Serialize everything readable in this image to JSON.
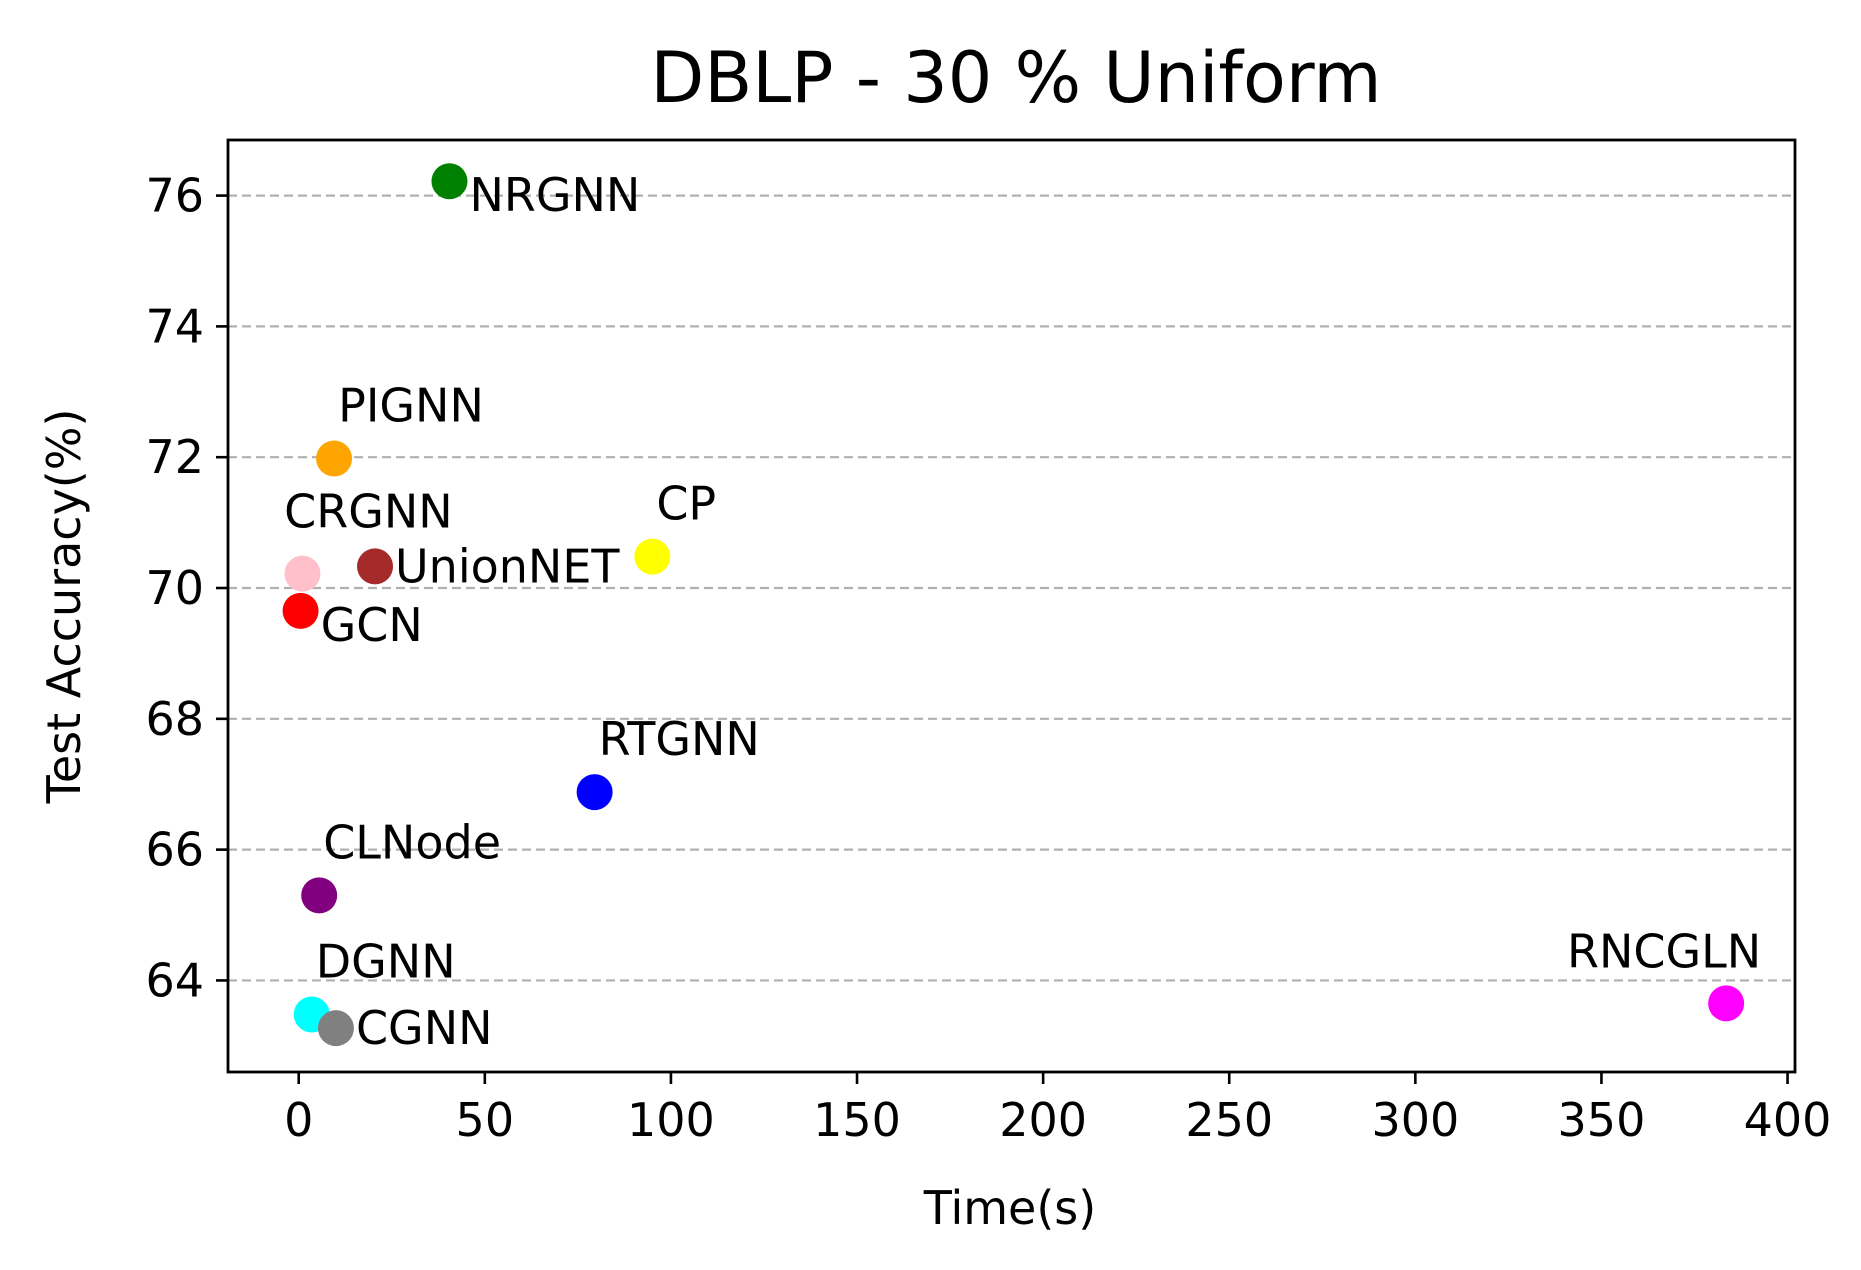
{
  "chart_data": {
    "type": "scatter",
    "title": "DBLP - 30 % Uniform",
    "xlabel": "Time(s)",
    "ylabel": "Test Accuracy(%)",
    "xlim": [
      -19,
      402
    ],
    "ylim": [
      62.6,
      76.85
    ],
    "xticks": [
      0,
      50,
      100,
      150,
      200,
      250,
      300,
      350,
      400
    ],
    "yticks": [
      64,
      66,
      68,
      70,
      72,
      74,
      76
    ],
    "grid": "y-dashed",
    "points": [
      {
        "label": "NRGNN",
        "x": 40.5,
        "y": 76.22,
        "color": "#008000",
        "label_pos": "below-right"
      },
      {
        "label": "PIGNN",
        "x": 9.5,
        "y": 71.98,
        "color": "#ffa500",
        "label_pos": "above-right"
      },
      {
        "label": "CRGNN",
        "x": 1.0,
        "y": 70.22,
        "color": "#ffc0cb",
        "label_pos": "above"
      },
      {
        "label": "UnionNET",
        "x": 20.5,
        "y": 70.33,
        "color": "#a52a2a",
        "label_pos": "right"
      },
      {
        "label": "CP",
        "x": 95.0,
        "y": 70.48,
        "color": "#ffff00",
        "label_pos": "above-right"
      },
      {
        "label": "GCN",
        "x": 0.5,
        "y": 69.65,
        "color": "#ff0000",
        "label_pos": "below-right"
      },
      {
        "label": "RTGNN",
        "x": 79.5,
        "y": 66.88,
        "color": "#0000ff",
        "label_pos": "above-right"
      },
      {
        "label": "CLNode",
        "x": 5.5,
        "y": 65.3,
        "color": "#800080",
        "label_pos": "above-right"
      },
      {
        "label": "DGNN",
        "x": 3.5,
        "y": 63.48,
        "color": "#00ffff",
        "label_pos": "above-right"
      },
      {
        "label": "CGNN",
        "x": 10.0,
        "y": 63.27,
        "color": "#808080",
        "label_pos": "right"
      },
      {
        "label": "RNCGLN",
        "x": 383.5,
        "y": 63.65,
        "color": "#ff00ff",
        "label_pos": "above-left"
      }
    ]
  }
}
